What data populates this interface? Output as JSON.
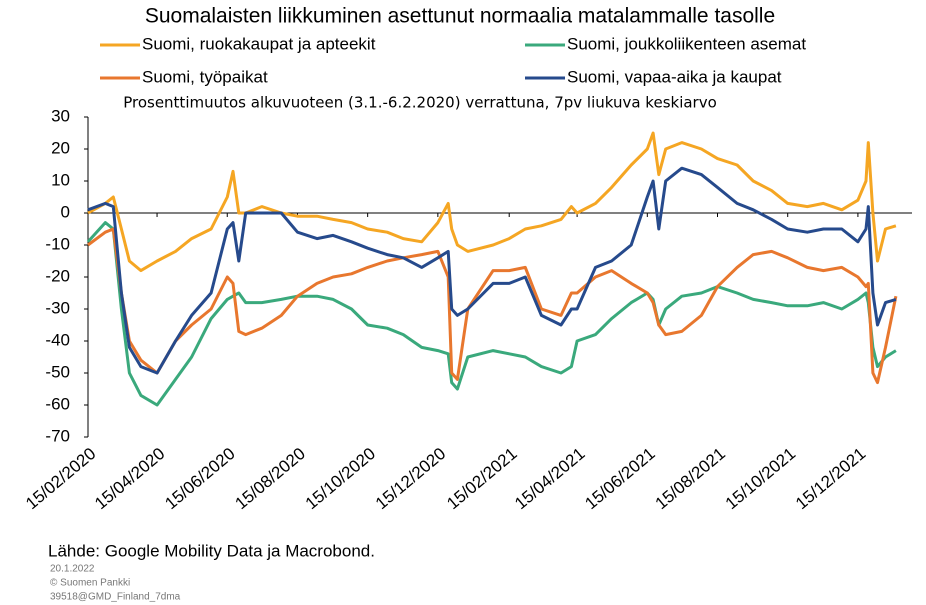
{
  "chart_data": {
    "type": "line",
    "title": "Suomalaisten liikkuminen asettunut normaalia matalammalle tasolle",
    "subtitle": "Prosenttimuutos alkuvuoteen (3.1.-6.2.2020) verrattuna, 7pv liukuva keskiarvo",
    "source": "Lähde: Google Mobility Data ja Macrobond.",
    "footnotes": [
      "20.1.2022",
      "© Suomen Pankki",
      "39518@GMD_Finland_7dma"
    ],
    "x": [
      "15/02/2020",
      "01/03/2020",
      "08/03/2020",
      "15/03/2020",
      "22/03/2020",
      "01/04/2020",
      "15/04/2020",
      "01/05/2020",
      "15/05/2020",
      "01/06/2020",
      "15/06/2020",
      "20/06/2020",
      "25/06/2020",
      "01/07/2020",
      "15/07/2020",
      "01/08/2020",
      "15/08/2020",
      "01/09/2020",
      "15/09/2020",
      "01/10/2020",
      "15/10/2020",
      "01/11/2020",
      "15/11/2020",
      "01/12/2020",
      "15/12/2020",
      "24/12/2020",
      "27/12/2020",
      "01/01/2021",
      "10/01/2021",
      "01/02/2021",
      "15/02/2021",
      "01/03/2021",
      "15/03/2021",
      "01/04/2021",
      "10/04/2021",
      "15/04/2021",
      "01/05/2021",
      "15/05/2021",
      "01/06/2021",
      "15/06/2021",
      "20/06/2021",
      "25/06/2021",
      "01/07/2021",
      "15/07/2021",
      "01/08/2021",
      "15/08/2021",
      "01/09/2021",
      "15/09/2021",
      "01/10/2021",
      "15/10/2021",
      "01/11/2021",
      "15/11/2021",
      "01/12/2021",
      "15/12/2021",
      "22/12/2021",
      "24/12/2021",
      "28/12/2021",
      "01/01/2022",
      "08/01/2022",
      "17/01/2022"
    ],
    "series": [
      {
        "name": "Suomi, ruokakaupat ja apteekit",
        "color": "#f5a623",
        "values": [
          0,
          3,
          5,
          -5,
          -15,
          -18,
          -15,
          -12,
          -8,
          -5,
          5,
          13,
          0,
          0,
          2,
          0,
          -1,
          -1,
          -2,
          -3,
          -5,
          -6,
          -8,
          -9,
          -3,
          3,
          -5,
          -10,
          -12,
          -10,
          -8,
          -5,
          -4,
          -2,
          2,
          0,
          3,
          8,
          15,
          20,
          25,
          12,
          20,
          22,
          20,
          17,
          15,
          10,
          7,
          3,
          2,
          3,
          1,
          4,
          10,
          22,
          0,
          -15,
          -5,
          -4
        ]
      },
      {
        "name": "Suomi, joukkoliikenteen asemat",
        "color": "#3aa97c",
        "values": [
          -9,
          -3,
          -5,
          -30,
          -50,
          -57,
          -60,
          -52,
          -45,
          -33,
          -27,
          -26,
          -25,
          -28,
          -28,
          -27,
          -26,
          -26,
          -27,
          -30,
          -35,
          -36,
          -38,
          -42,
          -43,
          -44,
          -53,
          -55,
          -45,
          -43,
          -44,
          -45,
          -48,
          -50,
          -48,
          -40,
          -38,
          -33,
          -28,
          -25,
          -27,
          -35,
          -30,
          -26,
          -25,
          -23,
          -25,
          -27,
          -28,
          -29,
          -29,
          -28,
          -30,
          -27,
          -25,
          -28,
          -42,
          -48,
          -45,
          -43
        ]
      },
      {
        "name": "Suomi, työpaikat",
        "color": "#e8772e",
        "values": [
          -10,
          -6,
          -5,
          -25,
          -40,
          -46,
          -50,
          -40,
          -35,
          -30,
          -20,
          -22,
          -37,
          -38,
          -36,
          -32,
          -26,
          -22,
          -20,
          -19,
          -17,
          -15,
          -14,
          -13,
          -12,
          -20,
          -50,
          -52,
          -30,
          -18,
          -18,
          -17,
          -30,
          -32,
          -25,
          -25,
          -20,
          -18,
          -22,
          -25,
          -28,
          -35,
          -38,
          -37,
          -32,
          -23,
          -17,
          -13,
          -12,
          -14,
          -17,
          -18,
          -17,
          -20,
          -23,
          -22,
          -50,
          -53,
          -42,
          -26
        ]
      },
      {
        "name": "Suomi, vapaa-aika ja kaupat",
        "color": "#264a8c",
        "values": [
          1,
          3,
          2,
          -25,
          -42,
          -48,
          -50,
          -40,
          -32,
          -25,
          -5,
          -3,
          -15,
          0,
          0,
          0,
          -6,
          -8,
          -7,
          -9,
          -11,
          -13,
          -14,
          -17,
          -14,
          -12,
          -30,
          -32,
          -30,
          -22,
          -22,
          -20,
          -32,
          -35,
          -30,
          -30,
          -17,
          -15,
          -10,
          5,
          10,
          -5,
          10,
          14,
          12,
          8,
          3,
          1,
          -2,
          -5,
          -6,
          -5,
          -5,
          -9,
          -5,
          2,
          -25,
          -35,
          -28,
          -27
        ]
      }
    ],
    "xlim": [
      "15/02/2020",
      "31/01/2022"
    ],
    "xticks": [
      "15/02/2020",
      "15/04/2020",
      "15/06/2020",
      "15/08/2020",
      "15/10/2020",
      "15/12/2020",
      "15/02/2021",
      "15/04/2021",
      "15/06/2021",
      "15/08/2021",
      "15/10/2021",
      "15/12/2021"
    ],
    "ylim": [
      -70,
      30
    ],
    "yticks": [
      -70,
      -60,
      -50,
      -40,
      -30,
      -20,
      -10,
      0,
      10,
      20,
      30
    ]
  }
}
